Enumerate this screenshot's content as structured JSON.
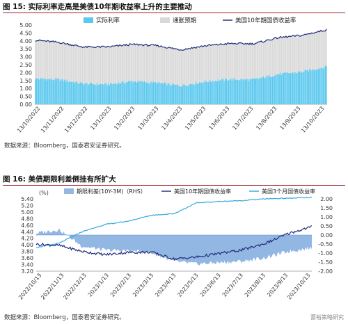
{
  "fig15": {
    "number": "图 15:",
    "title": "实际利率走高是美债10年期收益率上升的主要推动",
    "source": "数据来源：Bloomberg，国泰君安证券研究。",
    "colors": {
      "real": "#5bc8ee",
      "infl": "#d9d9d9",
      "yield": "#1f2a7a"
    }
  },
  "fig16": {
    "number": "图 16:",
    "title": "美债期限利差倒挂有所扩大",
    "source": "数据来源：Bloomberg，国泰君安证券研究。",
    "unit_left": "(%)",
    "colors": {
      "spread": "#92b7e3",
      "y10": "#1f2a7a",
      "y3m": "#33a6e0"
    }
  },
  "watermark": "蕾裕策略研究",
  "chart_data": [
    {
      "type": "bar",
      "stacked": true,
      "x_tick_labels": [
        "13/10/2022",
        "13/11/2022",
        "13/12/2022",
        "13/1/2023",
        "13/2/2023",
        "13/3/2023",
        "13/4/2023",
        "13/5/2023",
        "13/6/2023",
        "13/7/2023",
        "13/8/2023",
        "13/9/2023",
        "13/10/2023"
      ],
      "y_ticks": [
        "0.00",
        "0.50",
        "1.00",
        "1.50",
        "2.00",
        "2.50",
        "3.00",
        "3.50",
        "4.00",
        "4.50",
        "5.00"
      ],
      "ylim": [
        0,
        5.0
      ],
      "legend": [
        "实际利率",
        "通胀预期",
        "美国10年期国债收益率"
      ],
      "legend_position": "top",
      "series": [
        {
          "name": "实际利率",
          "kind": "bar",
          "values": [
            1.62,
            1.56,
            1.3,
            1.26,
            1.46,
            1.35,
            1.18,
            1.44,
            1.58,
            1.56,
            1.9,
            2.05,
            2.38
          ]
        },
        {
          "name": "通胀预期",
          "kind": "bar",
          "values": [
            2.55,
            2.33,
            2.31,
            2.36,
            2.32,
            2.35,
            2.26,
            2.25,
            2.25,
            2.26,
            2.3,
            2.3,
            2.32
          ]
        },
        {
          "name": "美国10年期国债收益率",
          "kind": "line",
          "values": [
            4.05,
            3.9,
            3.61,
            3.62,
            3.78,
            3.7,
            3.44,
            3.69,
            3.83,
            3.82,
            4.2,
            4.35,
            4.7
          ]
        }
      ]
    },
    {
      "type": "line",
      "x_tick_labels": [
        "2022/10/13",
        "2022/11/13",
        "2022/12/13",
        "2023/1/13",
        "2023/2/13",
        "2023/3/13",
        "2023/4/13",
        "2023/5/13",
        "2023/6/13",
        "2023/7/13",
        "2023/8/13",
        "2023/9/13",
        "2023/10/13"
      ],
      "y_left_ticks": [
        "3.20",
        "3.40",
        "3.60",
        "3.80",
        "4.00",
        "4.20",
        "4.40",
        "4.60",
        "4.80",
        "5.00",
        "5.20",
        "5.40"
      ],
      "y_right_ticks": [
        "-2.00",
        "-1.50",
        "-1.00",
        "-0.50",
        "0.00",
        "0.50",
        "1.00",
        "1.50",
        "2.00"
      ],
      "ylim_left": [
        3.2,
        5.4
      ],
      "ylim_right": [
        -2.0,
        2.0
      ],
      "legend": [
        "期限利差(10Y-3M)（RHS）",
        "美国10年期国债收益率",
        "美国3个月国债收益率"
      ],
      "legend_position": "top",
      "series": [
        {
          "name": "期限利差(10Y-3M)（RHS）",
          "kind": "area",
          "axis": "right",
          "values": [
            0.1,
            0.3,
            -0.62,
            -0.84,
            -0.87,
            -0.98,
            -1.46,
            -1.6,
            -1.52,
            -1.45,
            -1.25,
            -0.9,
            -0.71
          ]
        },
        {
          "name": "美国10年期国债收益率",
          "kind": "line",
          "axis": "left",
          "values": [
            4.02,
            3.98,
            3.8,
            3.7,
            3.77,
            3.78,
            3.57,
            3.63,
            3.74,
            3.85,
            4.05,
            4.35,
            4.55
          ]
        },
        {
          "name": "美国3个月国债收益率",
          "kind": "line",
          "axis": "left",
          "values": [
            3.92,
            4.05,
            4.4,
            4.62,
            4.72,
            4.9,
            4.95,
            5.28,
            5.32,
            5.35,
            5.4,
            5.42,
            5.44
          ]
        }
      ]
    }
  ]
}
